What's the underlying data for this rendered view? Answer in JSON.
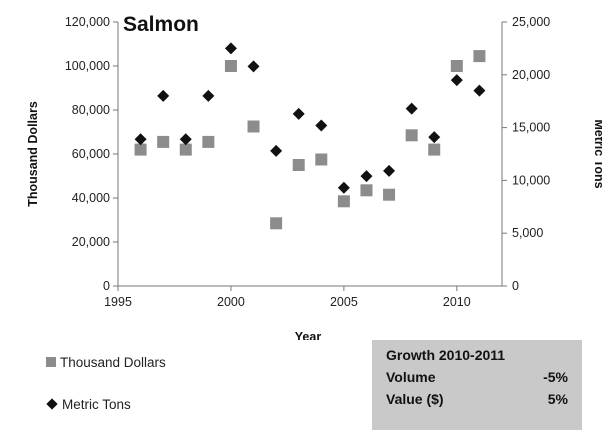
{
  "chart_data": {
    "type": "scatter",
    "title": "Salmon",
    "xlabel": "Year",
    "ylabel": "Thousand Dollars",
    "y2label": "Metric Tons",
    "xlim": [
      1995,
      2012
    ],
    "ylim": [
      0,
      120000
    ],
    "y2lim": [
      0,
      25000
    ],
    "x_ticks": [
      "1995",
      "2000",
      "2005",
      "2010"
    ],
    "y_ticks": [
      "0",
      "20,000",
      "40,000",
      "60,000",
      "80,000",
      "100,000",
      "120,000"
    ],
    "y2_ticks": [
      "0",
      "5,000",
      "10,000",
      "15,000",
      "20,000",
      "25,000"
    ],
    "grid": false,
    "series": [
      {
        "name": "Thousand Dollars",
        "axis": "left",
        "marker": "square",
        "color": "#8c8c8c",
        "x": [
          1996,
          1997,
          1998,
          1999,
          2000,
          2001,
          2002,
          2003,
          2004,
          2005,
          2006,
          2007,
          2008,
          2009,
          2010,
          2011
        ],
        "y": [
          62000,
          65500,
          62000,
          65500,
          100000,
          72500,
          28500,
          55000,
          57500,
          38500,
          43500,
          41500,
          68500,
          62000,
          100000,
          104500
        ]
      },
      {
        "name": "Metric Tons",
        "axis": "right",
        "marker": "diamond",
        "color": "#111111",
        "x": [
          1996,
          1997,
          1998,
          1999,
          2000,
          2001,
          2002,
          2003,
          2004,
          2005,
          2006,
          2007,
          2008,
          2009,
          2010,
          2011
        ],
        "y": [
          13900,
          18000,
          13900,
          18000,
          22500,
          20800,
          12800,
          16300,
          15200,
          9300,
          10400,
          10900,
          16800,
          14100,
          19500,
          18500
        ]
      }
    ]
  },
  "legend": {
    "items": [
      {
        "label": "Thousand Dollars",
        "marker": "square"
      },
      {
        "label": "Metric Tons",
        "marker": "diamond"
      }
    ]
  },
  "growth_box": {
    "title": "Growth 2010-2011",
    "rows": [
      {
        "label": "Volume",
        "value": "-5%"
      },
      {
        "label": "Value ($)",
        "value": "5%"
      }
    ]
  }
}
